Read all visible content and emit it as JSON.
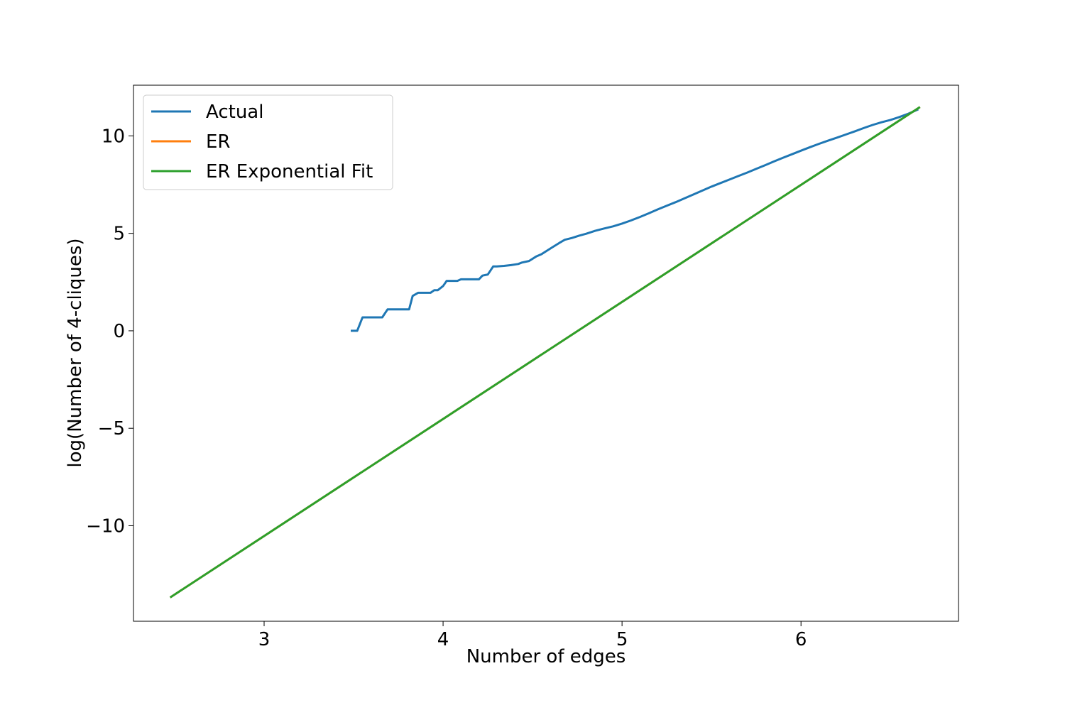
{
  "chart_data": {
    "type": "line",
    "title": "",
    "xlabel": "Number of edges",
    "ylabel": "log(Number of 4-cliques)",
    "xlim": [
      2.27,
      6.88
    ],
    "ylim": [
      -14.9,
      12.6
    ],
    "xticks": [
      3,
      4,
      5,
      6
    ],
    "yticks": [
      -10,
      -5,
      0,
      5,
      10
    ],
    "xtick_labels": [
      "3",
      "4",
      "5",
      "6"
    ],
    "ytick_labels": [
      "−10",
      "−5",
      "0",
      "5",
      "10"
    ],
    "grid": false,
    "legend_position": "top-left",
    "series": [
      {
        "name": "Actual",
        "color": "#1f77b4",
        "x": [
          3.49,
          3.52,
          3.55,
          3.58,
          3.61,
          3.64,
          3.66,
          3.69,
          3.72,
          3.76,
          3.81,
          3.83,
          3.86,
          3.89,
          3.93,
          3.95,
          3.97,
          4.0,
          4.02,
          4.05,
          4.08,
          4.1,
          4.15,
          4.2,
          4.22,
          4.25,
          4.28,
          4.3,
          4.34,
          4.38,
          4.42,
          4.44,
          4.48,
          4.52,
          4.55,
          4.58,
          4.61,
          4.65,
          4.68,
          4.72,
          4.76,
          4.8,
          4.85,
          4.9,
          4.95,
          5.0,
          5.05,
          5.1,
          5.15,
          5.2,
          5.25,
          5.3,
          5.35,
          5.4,
          5.45,
          5.5,
          5.55,
          5.6,
          5.65,
          5.7,
          5.75,
          5.8,
          5.85,
          5.9,
          5.95,
          6.0,
          6.05,
          6.1,
          6.15,
          6.2,
          6.25,
          6.3,
          6.35,
          6.4,
          6.45,
          6.5,
          6.55,
          6.6,
          6.65
        ],
        "y": [
          0.0,
          0.0,
          0.69,
          0.69,
          0.69,
          0.69,
          0.69,
          1.1,
          1.1,
          1.1,
          1.1,
          1.79,
          1.95,
          1.95,
          1.95,
          2.08,
          2.08,
          2.3,
          2.56,
          2.56,
          2.56,
          2.64,
          2.64,
          2.64,
          2.83,
          2.89,
          3.3,
          3.3,
          3.33,
          3.37,
          3.43,
          3.5,
          3.58,
          3.81,
          3.93,
          4.11,
          4.28,
          4.51,
          4.67,
          4.76,
          4.88,
          4.98,
          5.13,
          5.25,
          5.36,
          5.5,
          5.66,
          5.84,
          6.03,
          6.23,
          6.42,
          6.6,
          6.8,
          7.0,
          7.2,
          7.4,
          7.58,
          7.76,
          7.94,
          8.12,
          8.31,
          8.5,
          8.69,
          8.88,
          9.06,
          9.24,
          9.42,
          9.59,
          9.75,
          9.91,
          10.07,
          10.23,
          10.4,
          10.56,
          10.7,
          10.82,
          10.97,
          11.14,
          11.34
        ]
      },
      {
        "name": "ER",
        "color": "#ff7f0e",
        "x": [
          2.48,
          6.66
        ],
        "y": [
          -13.65,
          11.45
        ]
      },
      {
        "name": "ER Exponential Fit",
        "color": "#2ca02c",
        "x": [
          2.48,
          6.66
        ],
        "y": [
          -13.65,
          11.45
        ]
      }
    ]
  }
}
